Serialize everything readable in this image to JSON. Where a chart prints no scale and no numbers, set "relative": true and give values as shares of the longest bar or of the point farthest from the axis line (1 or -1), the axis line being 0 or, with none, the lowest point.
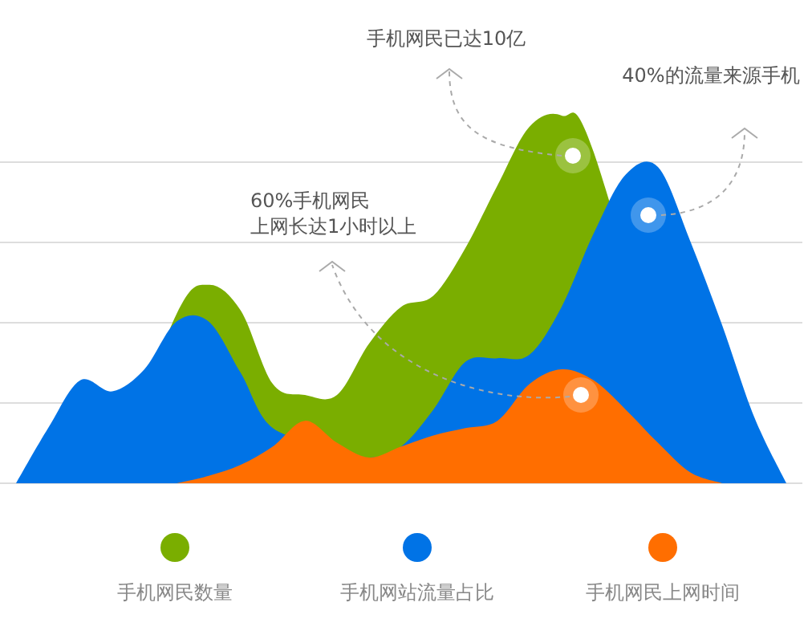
{
  "chart_data": {
    "type": "area",
    "relative": true,
    "grid": true,
    "legend": "bottom",
    "categories": [
      null,
      null,
      null,
      null,
      null,
      null,
      null,
      null,
      null,
      null,
      null,
      null,
      null,
      null,
      null,
      null,
      null,
      null,
      null,
      null,
      null,
      null,
      null,
      null,
      null
    ],
    "series": [
      {
        "name": "手机网民数量",
        "color": "#7aae00",
        "values": [
          null,
          null,
          null,
          0,
          null,
          0.46,
          0.54,
          0.47,
          0.27,
          0.24,
          0.24,
          0.38,
          0.48,
          0.51,
          0.64,
          0.81,
          0.97,
          1,
          0.9,
          null,
          null,
          0,
          null,
          null,
          null
        ]
      },
      {
        "name": "手机网站流量占比",
        "color": "#0073e6",
        "values": [
          0,
          0.15,
          0.28,
          0.25,
          0.31,
          0.44,
          0.44,
          0.3,
          0.15,
          null,
          0.1,
          0.07,
          0.1,
          0.2,
          0.33,
          0.34,
          0.35,
          0.48,
          0.68,
          0.84,
          0.86,
          0.66,
          0.43,
          0.18,
          0
        ]
      },
      {
        "name": "手机网民上网时间",
        "color": "#ff6e00",
        "values": [
          null,
          null,
          null,
          null,
          null,
          0,
          0.02,
          0.05,
          0.1,
          0.17,
          0.11,
          0.07,
          0.1,
          0.13,
          0.15,
          0.17,
          0.27,
          0.31,
          0.28,
          0.2,
          0.11,
          0.03,
          0,
          null,
          null
        ]
      }
    ],
    "annotations": [
      "手机网民已达10亿",
      "40%的流量来源手机",
      "60%手机网民",
      "上网长达1小时以上"
    ]
  }
}
